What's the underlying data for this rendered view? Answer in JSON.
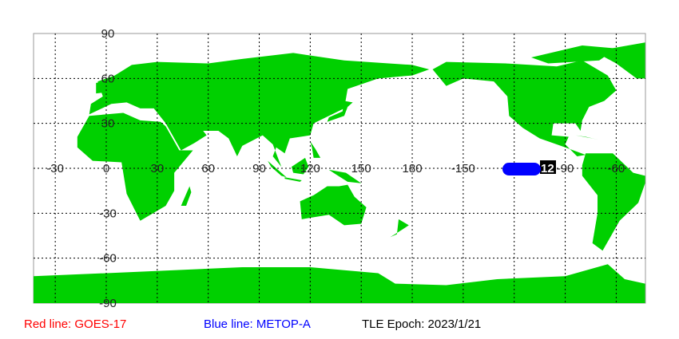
{
  "map": {
    "land_color": "#00d000",
    "lon_labels": [
      "-30",
      "0",
      "30",
      "60",
      "90",
      "120",
      "150",
      "180",
      "-150",
      "-120",
      "-90",
      "-60"
    ],
    "lat_labels": [
      "90",
      "60",
      "30",
      "0",
      "-30",
      "-60",
      "-90"
    ],
    "satellite_marker": {
      "color": "#0000ff",
      "label": "12"
    }
  },
  "legend": {
    "red_line": {
      "text": "Red line: GOES-17",
      "color": "#ff0000"
    },
    "blue_line": {
      "text": "Blue line: METOP-A",
      "color": "#0000ff"
    },
    "epoch": {
      "text": "TLE Epoch: 2023/1/21",
      "color": "#000000"
    }
  }
}
